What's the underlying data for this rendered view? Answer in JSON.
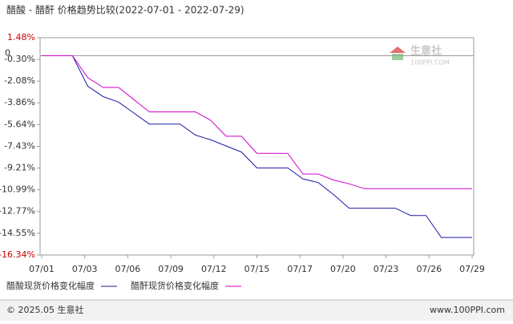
{
  "chart_data": {
    "type": "line",
    "title": "醋酸 - 醋酐 价格趋势比较(2022-07-01 - 2022-07-29)",
    "x": [
      1,
      2,
      3,
      4,
      5,
      6,
      7,
      8,
      9,
      10,
      11,
      12,
      13,
      14,
      15,
      16,
      17,
      18,
      19,
      20,
      21,
      22,
      23,
      24,
      25,
      26,
      27,
      28,
      29
    ],
    "xlim": [
      1,
      29
    ],
    "xticks": [
      {
        "value": 1,
        "label": "07/01"
      },
      {
        "value": 3.8,
        "label": "07/03"
      },
      {
        "value": 6.6,
        "label": "07/06"
      },
      {
        "value": 9.4,
        "label": "07/09"
      },
      {
        "value": 12.2,
        "label": "07/12"
      },
      {
        "value": 15,
        "label": "07/15"
      },
      {
        "value": 17.8,
        "label": "07/17"
      },
      {
        "value": 20.6,
        "label": "07/20"
      },
      {
        "value": 23.4,
        "label": "07/23"
      },
      {
        "value": 26.2,
        "label": "07/26"
      },
      {
        "value": 29,
        "label": "07/29"
      }
    ],
    "ylim": [
      -16.34,
      1.48
    ],
    "yticks": [
      {
        "value": 1.48,
        "label": "1.48%"
      },
      {
        "value": -0.3,
        "label": "-0.30%"
      },
      {
        "value": -2.08,
        "label": "-2.08%"
      },
      {
        "value": -3.86,
        "label": "-3.86%"
      },
      {
        "value": -5.64,
        "label": "-5.64%"
      },
      {
        "value": -7.43,
        "label": "-7.43%"
      },
      {
        "value": -9.21,
        "label": "-9.21%"
      },
      {
        "value": -10.99,
        "label": "-10.99%"
      },
      {
        "value": -12.77,
        "label": "-12.77%"
      },
      {
        "value": -14.55,
        "label": "-14.55%"
      },
      {
        "value": -16.34,
        "label": "-16.34%"
      }
    ],
    "extreme_tick_color": "#cc0000",
    "zero_line": {
      "value": 0,
      "label": "0"
    },
    "grid": false,
    "series": [
      {
        "name": "醋酸现货价格变化幅度",
        "color": "#1a1aa6",
        "values": [
          0,
          0,
          0,
          -2.5,
          -3.35,
          -3.8,
          -4.7,
          -5.6,
          -5.6,
          -5.6,
          -6.5,
          -6.9,
          -7.4,
          -7.9,
          -9.2,
          -9.2,
          -9.2,
          -10.1,
          -10.4,
          -11.4,
          -12.5,
          -12.5,
          -12.5,
          -12.5,
          -13.1,
          -13.1,
          -14.9,
          -14.9,
          -14.9
        ]
      },
      {
        "name": "醋酐现货价格变化幅度",
        "color": "#cc00cc",
        "values": [
          0,
          0,
          0,
          -1.8,
          -2.6,
          -2.6,
          -3.6,
          -4.6,
          -4.6,
          -4.6,
          -4.6,
          -5.3,
          -6.6,
          -6.6,
          -8.0,
          -8.0,
          -8.0,
          -9.7,
          -9.7,
          -10.2,
          -10.5,
          -10.9,
          -10.9,
          -10.9,
          -10.9,
          -10.9,
          -10.9,
          -10.9,
          -10.9
        ]
      }
    ]
  },
  "watermark": {
    "brand": "生意社",
    "site": "100PPI.COM"
  },
  "footer": {
    "copyright": "© 2025.05 生意社",
    "url": "www.100PPI.com"
  }
}
